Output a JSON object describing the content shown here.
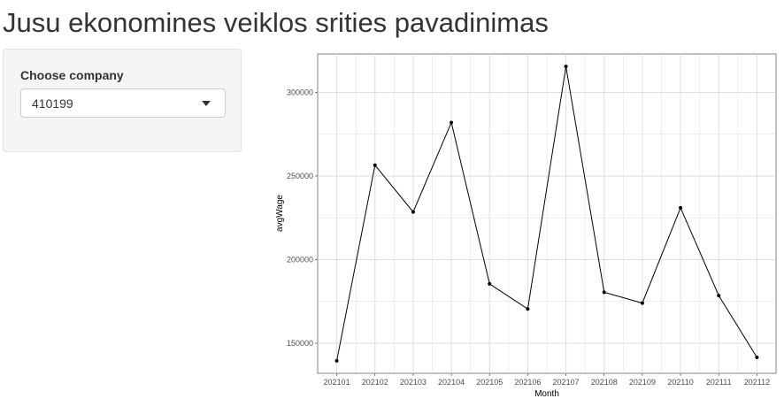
{
  "page": {
    "title": "Jusu ekonomines veiklos srities pavadinimas"
  },
  "sidebar": {
    "label": "Choose company",
    "select_value": "410199"
  },
  "chart_data": {
    "type": "line",
    "xlabel": "Month",
    "ylabel": "avgWage",
    "categories": [
      "202101",
      "202102",
      "202103",
      "202104",
      "202105",
      "202106",
      "202107",
      "202108",
      "202109",
      "202110",
      "202111",
      "202112"
    ],
    "values": [
      139500,
      256500,
      228500,
      282000,
      185500,
      170500,
      315500,
      180500,
      174000,
      231000,
      178500,
      141500
    ],
    "yticks": [
      150000,
      200000,
      250000,
      300000
    ],
    "ylim": [
      132000,
      323000
    ],
    "grid": true,
    "colors": {
      "line": "#000000",
      "grid": "#dedede",
      "axis_text": "#4d4d4d",
      "axis_title": "#000000"
    }
  }
}
